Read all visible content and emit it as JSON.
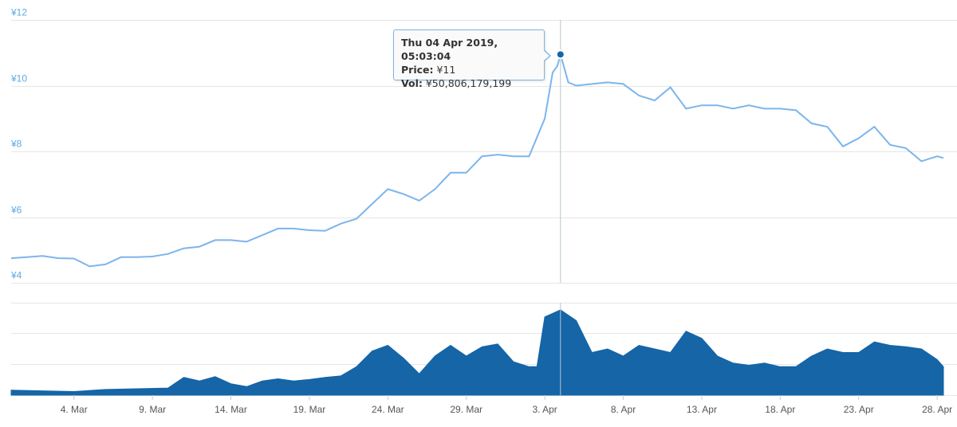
{
  "chart_data": {
    "type": "line",
    "price_axis": {
      "ylim": [
        4,
        12
      ],
      "ticks": [
        "¥4",
        "¥6",
        "¥8",
        "¥10",
        "¥12"
      ],
      "tick_values": [
        4,
        6,
        8,
        10,
        12
      ]
    },
    "x_ticks": [
      {
        "label": "4. Mar",
        "day": 4
      },
      {
        "label": "9. Mar",
        "day": 9
      },
      {
        "label": "14. Mar",
        "day": 14
      },
      {
        "label": "19. Mar",
        "day": 19
      },
      {
        "label": "24. Mar",
        "day": 24
      },
      {
        "label": "29. Mar",
        "day": 29
      },
      {
        "label": "3. Apr",
        "day": 34
      },
      {
        "label": "8. Apr",
        "day": 39
      },
      {
        "label": "13. Apr",
        "day": 44
      },
      {
        "label": "18. Apr",
        "day": 49
      },
      {
        "label": "23. Apr",
        "day": 54
      },
      {
        "label": "28. Apr",
        "day": 59
      }
    ],
    "xlim": [
      0,
      59.4
    ],
    "grid": true,
    "series": [
      {
        "kind": "price",
        "color": "#7cb5ec",
        "points": [
          [
            0,
            4.75
          ],
          [
            1,
            4.78
          ],
          [
            2,
            4.82
          ],
          [
            3,
            4.75
          ],
          [
            4,
            4.74
          ],
          [
            5,
            4.5
          ],
          [
            6,
            4.56
          ],
          [
            7,
            4.78
          ],
          [
            8,
            4.78
          ],
          [
            9,
            4.8
          ],
          [
            10,
            4.88
          ],
          [
            11,
            5.05
          ],
          [
            12,
            5.1
          ],
          [
            13,
            5.3
          ],
          [
            14,
            5.3
          ],
          [
            15,
            5.25
          ],
          [
            16,
            5.45
          ],
          [
            17,
            5.65
          ],
          [
            18,
            5.65
          ],
          [
            19,
            5.6
          ],
          [
            20,
            5.58
          ],
          [
            21,
            5.8
          ],
          [
            22,
            5.95
          ],
          [
            23,
            6.4
          ],
          [
            24,
            6.85
          ],
          [
            25,
            6.7
          ],
          [
            26,
            6.5
          ],
          [
            27,
            6.85
          ],
          [
            28,
            7.35
          ],
          [
            29,
            7.35
          ],
          [
            30,
            7.85
          ],
          [
            31,
            7.9
          ],
          [
            32,
            7.85
          ],
          [
            33,
            7.85
          ],
          [
            34,
            9.0
          ],
          [
            34.5,
            10.4
          ],
          [
            34.8,
            10.6
          ],
          [
            35,
            10.95
          ],
          [
            35.5,
            10.1
          ],
          [
            36,
            10.0
          ],
          [
            37,
            10.05
          ],
          [
            38,
            10.1
          ],
          [
            39,
            10.05
          ],
          [
            40,
            9.7
          ],
          [
            41,
            9.55
          ],
          [
            42,
            9.95
          ],
          [
            43,
            9.3
          ],
          [
            44,
            9.4
          ],
          [
            45,
            9.4
          ],
          [
            46,
            9.3
          ],
          [
            47,
            9.4
          ],
          [
            48,
            9.3
          ],
          [
            49,
            9.3
          ],
          [
            50,
            9.25
          ],
          [
            51,
            8.85
          ],
          [
            52,
            8.75
          ],
          [
            53,
            8.15
          ],
          [
            54,
            8.4
          ],
          [
            55,
            8.75
          ],
          [
            56,
            8.2
          ],
          [
            57,
            8.1
          ],
          [
            58,
            7.7
          ],
          [
            59,
            7.85
          ],
          [
            59.4,
            7.8
          ]
        ]
      },
      {
        "kind": "volume",
        "color": "#1565a7",
        "points": [
          [
            0,
            0.07
          ],
          [
            2,
            0.06
          ],
          [
            4,
            0.05
          ],
          [
            6,
            0.08
          ],
          [
            8,
            0.09
          ],
          [
            10,
            0.1
          ],
          [
            11,
            0.25
          ],
          [
            12,
            0.2
          ],
          [
            13,
            0.26
          ],
          [
            14,
            0.16
          ],
          [
            15,
            0.12
          ],
          [
            16,
            0.2
          ],
          [
            17,
            0.23
          ],
          [
            18,
            0.2
          ],
          [
            19,
            0.22
          ],
          [
            20,
            0.25
          ],
          [
            21,
            0.27
          ],
          [
            22,
            0.4
          ],
          [
            23,
            0.62
          ],
          [
            24,
            0.7
          ],
          [
            25,
            0.52
          ],
          [
            26,
            0.3
          ],
          [
            27,
            0.55
          ],
          [
            28,
            0.7
          ],
          [
            29,
            0.55
          ],
          [
            30,
            0.68
          ],
          [
            31,
            0.72
          ],
          [
            32,
            0.47
          ],
          [
            33,
            0.4
          ],
          [
            33.5,
            0.4
          ],
          [
            34,
            1.1
          ],
          [
            35,
            1.2
          ],
          [
            36,
            1.05
          ],
          [
            37,
            0.6
          ],
          [
            38,
            0.65
          ],
          [
            39,
            0.55
          ],
          [
            40,
            0.7
          ],
          [
            41,
            0.65
          ],
          [
            42,
            0.6
          ],
          [
            43,
            0.9
          ],
          [
            44,
            0.8
          ],
          [
            45,
            0.55
          ],
          [
            46,
            0.45
          ],
          [
            47,
            0.42
          ],
          [
            48,
            0.45
          ],
          [
            49,
            0.4
          ],
          [
            50,
            0.4
          ],
          [
            51,
            0.55
          ],
          [
            52,
            0.65
          ],
          [
            53,
            0.6
          ],
          [
            54,
            0.6
          ],
          [
            55,
            0.75
          ],
          [
            56,
            0.7
          ],
          [
            57,
            0.68
          ],
          [
            58,
            0.65
          ],
          [
            59,
            0.5
          ],
          [
            59.4,
            0.4
          ]
        ]
      }
    ],
    "highlight": {
      "x": 35,
      "y": 10.95
    }
  },
  "tooltip": {
    "title": "Thu 04 Apr 2019, 05:03:04",
    "price_label": "Price:",
    "price_value": "¥11",
    "vol_label": "Vol:",
    "vol_value": "¥50,806,179,199"
  },
  "colors": {
    "price_line": "#7cb5ec",
    "volume_fill": "#1565a7",
    "axis_text": "#5aa9e6"
  }
}
